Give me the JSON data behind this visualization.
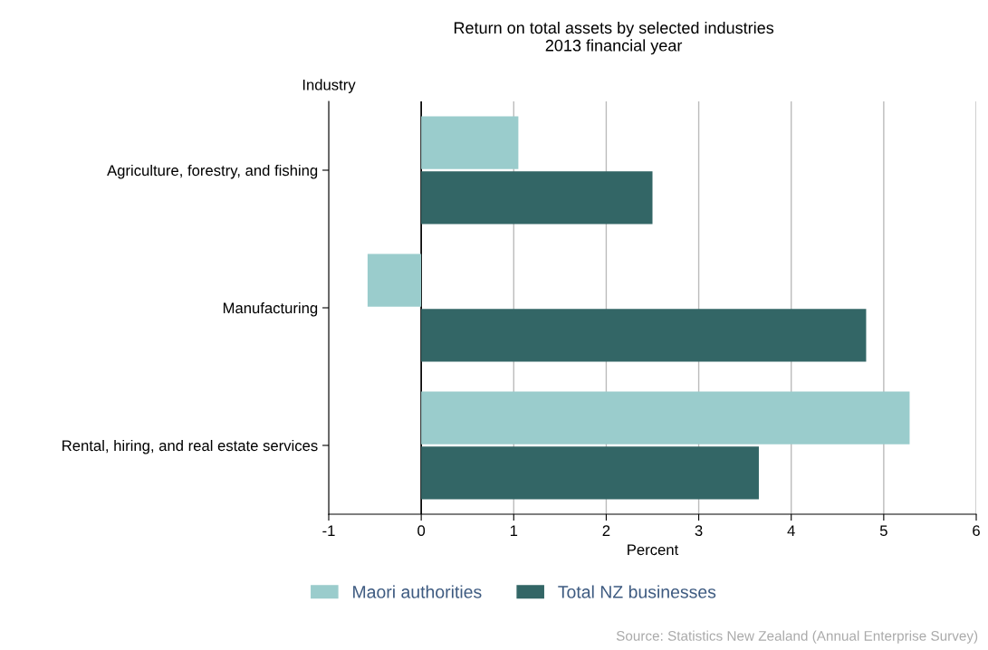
{
  "chart_data": {
    "type": "bar",
    "orientation": "horizontal",
    "title": "Return on total assets by selected industries\n2013 financial year",
    "ylabel": "Industry",
    "xlabel": "Percent",
    "categories": [
      "Agriculture, forestry, and fishing",
      "Manufacturing",
      "Rental, hiring, and real estate services"
    ],
    "series": [
      {
        "name": "Maori authorities",
        "color": "#9acccc",
        "values": [
          1.05,
          -0.58,
          5.28
        ]
      },
      {
        "name": "Total NZ businesses",
        "color": "#336666",
        "values": [
          2.5,
          4.81,
          3.65
        ]
      }
    ],
    "xlim": [
      -1,
      6
    ],
    "xticks": [
      -1,
      0,
      1,
      2,
      3,
      4,
      5,
      6
    ],
    "grid": "x",
    "legend": "bottom",
    "ref_lines": [
      {
        "axis": "x",
        "value": 0,
        "color": "#000000"
      }
    ],
    "annotations": [
      "Source: Statistics New Zealand (Annual Enterprise Survey)"
    ]
  }
}
